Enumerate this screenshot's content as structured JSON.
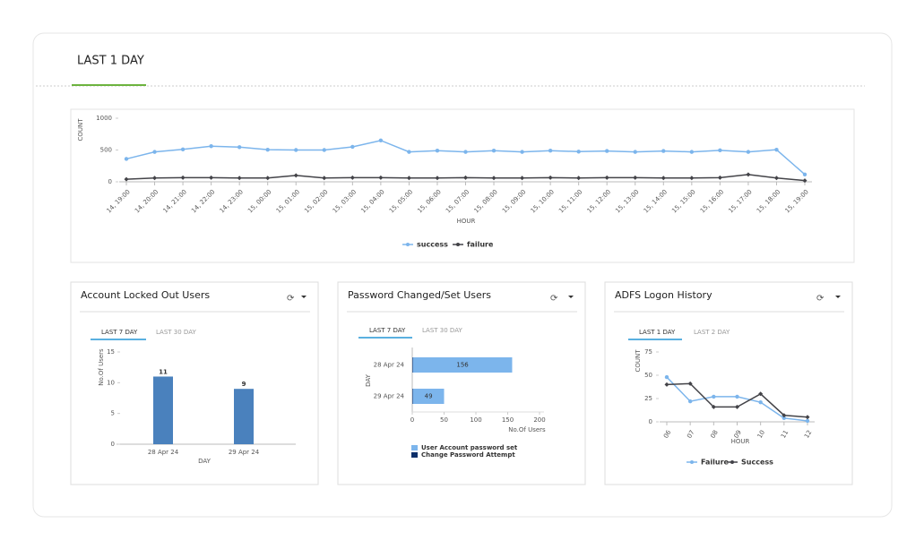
{
  "page_title": "LAST 1 DAY",
  "chart_data": [
    {
      "type": "line",
      "categories": [
        "14, 19:00",
        "14, 20:00",
        "14, 21:00",
        "14, 22:00",
        "14, 23:00",
        "15, 00:00",
        "15, 01:00",
        "15, 02:00",
        "15, 03:00",
        "15, 04:00",
        "15, 05:00",
        "15, 06:00",
        "15, 07:00",
        "15, 08:00",
        "15, 09:00",
        "15, 10:00",
        "15, 11:00",
        "15, 12:00",
        "15, 13:00",
        "15, 14:00",
        "15, 15:00",
        "15, 16:00",
        "15, 17:00",
        "15, 18:00",
        "15, 19:00"
      ],
      "series": [
        {
          "name": "success",
          "color": "#7cb5ec",
          "values": [
            360,
            470,
            510,
            560,
            545,
            505,
            500,
            500,
            550,
            650,
            470,
            490,
            470,
            490,
            470,
            490,
            475,
            485,
            470,
            485,
            470,
            495,
            470,
            505,
            115
          ]
        },
        {
          "name": "failure",
          "color": "#434348",
          "values": [
            40,
            60,
            65,
            65,
            60,
            60,
            100,
            60,
            65,
            65,
            60,
            60,
            65,
            60,
            60,
            65,
            60,
            65,
            65,
            60,
            60,
            65,
            115,
            60,
            20
          ]
        }
      ],
      "ylim": [
        0,
        1000
      ],
      "yticks": [
        0,
        500,
        1000
      ],
      "x_label": "HOUR",
      "y_label": "COUNT"
    },
    {
      "type": "bar",
      "title": "Account Locked Out Users",
      "tabs": [
        "LAST 7 DAY",
        "LAST 30 DAY"
      ],
      "categories": [
        "28 Apr 24",
        "29 Apr 24"
      ],
      "values": [
        11,
        9
      ],
      "color": "#4a81bd",
      "ylim": [
        0,
        15
      ],
      "yticks": [
        0,
        5,
        10,
        15
      ],
      "x_label": "DAY",
      "y_label": "No.Of Users"
    },
    {
      "type": "bar",
      "orientation": "horizontal",
      "stacked": true,
      "title": "Password Changed/Set Users",
      "tabs": [
        "LAST 7 DAY",
        "LAST 30 DAY"
      ],
      "categories": [
        "28 Apr 24",
        "29 Apr 24"
      ],
      "series": [
        {
          "name": "User Account password set",
          "color": "#7cb5ec",
          "values": [
            156,
            49
          ]
        },
        {
          "name": "Change Password Attempt",
          "color": "#0d2f6a",
          "values": [
            1,
            1
          ]
        }
      ],
      "xlim": [
        0,
        200
      ],
      "xticks": [
        0,
        50,
        100,
        150,
        200
      ],
      "x_label": "No.Of Users",
      "y_label": "DAY"
    },
    {
      "type": "line",
      "title": "ADFS Logon History",
      "tabs": [
        "LAST 1 DAY",
        "LAST 2 DAY"
      ],
      "categories": [
        "06",
        "07",
        "08",
        "09",
        "10",
        "11",
        "12"
      ],
      "series": [
        {
          "name": "Failure",
          "color": "#7cb5ec",
          "values": [
            48,
            22,
            27,
            27,
            21,
            4,
            1
          ]
        },
        {
          "name": "Success",
          "color": "#434348",
          "values": [
            40,
            41,
            16,
            16,
            30,
            7,
            5
          ]
        }
      ],
      "ylim": [
        0,
        75
      ],
      "yticks": [
        0,
        25,
        50,
        75
      ],
      "x_label": "HOUR",
      "y_label": "COUNT"
    }
  ]
}
